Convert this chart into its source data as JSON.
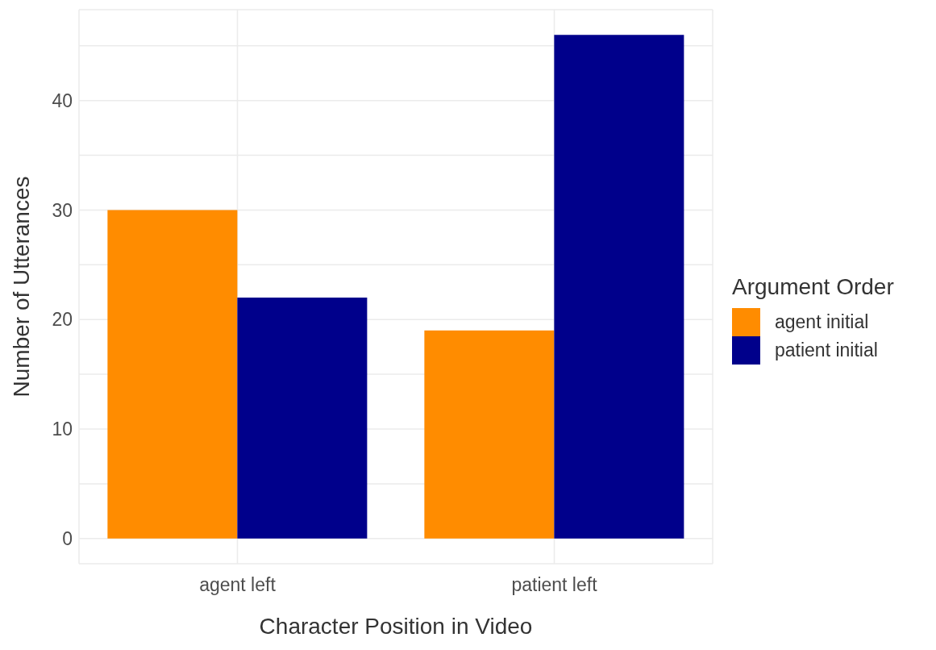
{
  "chart_data": {
    "type": "bar",
    "xlabel": "Character Position in Video",
    "ylabel": "Number of Utterances",
    "legend_title": "Argument Order",
    "categories": [
      "agent left",
      "patient left"
    ],
    "series": [
      {
        "name": "agent initial",
        "color": "#ff8c00",
        "values": [
          30,
          19
        ]
      },
      {
        "name": "patient initial",
        "color": "#00008b",
        "values": [
          22,
          46
        ]
      }
    ],
    "ylim": [
      -2.3,
      48.3
    ],
    "yticks": [
      0,
      {
        "value": 5,
        "label": null
      },
      10,
      {
        "value": 15,
        "label": null
      },
      20,
      {
        "value": 25,
        "label": null
      },
      30,
      {
        "value": 35,
        "label": null
      },
      40,
      {
        "value": 45,
        "label": null
      }
    ],
    "grid": true,
    "legend": "right"
  }
}
